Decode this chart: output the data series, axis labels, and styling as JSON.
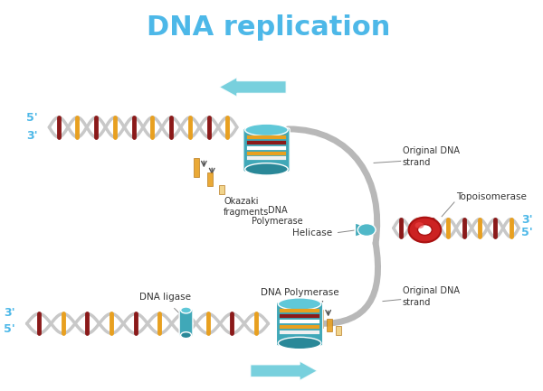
{
  "title": "DNA replication",
  "title_color": "#4db8e8",
  "title_fontsize": 22,
  "bg_color": "#ffffff",
  "labels": {
    "five_prime_top": "5'",
    "three_prime_top": "3'",
    "three_prime_right_upper": "3'",
    "five_prime_right_upper": "5'",
    "three_prime_bottom": "3'",
    "five_prime_bottom": "5'",
    "okazaki": "Okazaki\nfragments",
    "dna_pol_top": "DNA\nPolymerase",
    "dna_pol_bottom": "DNA Polymerase",
    "helicase": "Helicase",
    "topoisomerase": "Topoisomerase",
    "orig_strand_top": "Original DNA\nstrand",
    "orig_strand_bottom": "Original DNA\nstrand",
    "dna_ligase": "DNA ligase"
  },
  "colors": {
    "dna_orange": "#e8a020",
    "dna_dark_red": "#8b1a1a",
    "dna_gray": "#c8c8c8",
    "dna_white": "#f0f0f0",
    "dna_teal": "#40a8b8",
    "dna_red": "#cc2222",
    "arrow_teal": "#60c8d8",
    "label_gray": "#555555",
    "label_blue": "#4db8e8",
    "connector_gray": "#888888"
  }
}
